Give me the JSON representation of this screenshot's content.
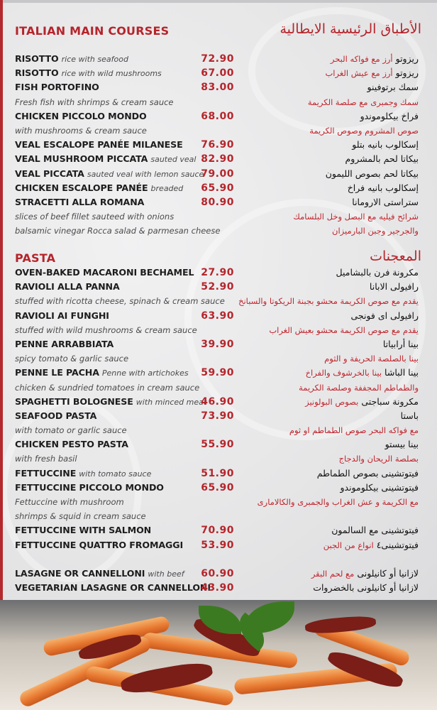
{
  "main_courses": {
    "title_en": "ITALIAN MAIN COURSES",
    "title_ar": "الأطباق الرئيسية الايطالية",
    "lines": [
      {
        "en": "RISOTTO",
        "en_i": "rice with seafood",
        "price": "72.90",
        "ar": "ريزوتو",
        "ar_r": "أرز مع فواكه البحر"
      },
      {
        "en": "RISOTTO",
        "en_i": "rice with wild mushrooms",
        "price": "67.00",
        "ar": "ريزوتو",
        "ar_r": "أرز مع عيش الغراب"
      },
      {
        "en": "FISH PORTOFINO",
        "price": "83.00",
        "ar": "سمك برتوفينو"
      },
      {
        "en_i": "Fresh fish with shrimps & cream sauce",
        "ar_r": "سمك وجمبرى مع صلصة الكريمة"
      },
      {
        "en": "CHICKEN PICCOLO MONDO",
        "price": "68.00",
        "ar": "فراخ بيكلوموندو"
      },
      {
        "en_i": "with mushrooms & cream sauce",
        "ar_r": "صوص المشروم وصوص الكريمة"
      },
      {
        "en": "VEAL ESCALOPE PANÉE MILANESE",
        "price": "76.90",
        "ar": "إسكالوب بانيه بتلو"
      },
      {
        "en": "VEAL MUSHROOM PICCATA",
        "en_i": "sauted veal",
        "price": "82.90",
        "ar": "بيكاتا لحم بالمشروم"
      },
      {
        "en": "VEAL PICCATA",
        "en_i": "sauted veal with lemon sauce",
        "price": "79.00",
        "ar": "بيكاتا لحم بصوص الليمون"
      },
      {
        "en": "CHICKEN ESCALOPE PANÉE",
        "en_i": "breaded",
        "price": "65.90",
        "ar": "إسكالوب بانيه فراخ"
      },
      {
        "en": "STRACETTI ALLA ROMANA",
        "price": "80.90",
        "ar": "ستراستى الارومانا"
      },
      {
        "en_i": "slices of beef fillet sauteed with onions",
        "ar_r": "شرائح فيليه مع البصل وخل البلسامك"
      },
      {
        "en_i": "balsamic vinegar Rocca salad & parmesan cheese",
        "ar_r": "والجرجير وجبن البارميزان"
      }
    ]
  },
  "pasta": {
    "title_en": "PASTA",
    "title_ar": "المعجنات",
    "lines": [
      {
        "en": "OVEN-BAKED MACARONI BECHAMEL",
        "price": "27.90",
        "ar": "مكرونة فرن بالبشاميل"
      },
      {
        "en": "RAVIOLI ALLA PANNA",
        "price": "52.90",
        "ar": "رافيولى الابانا"
      },
      {
        "en_i": "stuffed with ricotta cheese, spinach & cream sauce",
        "ar_r": "يقدم مع صوص الكريمة محشو بجبنة الريكوتا والسبانخ"
      },
      {
        "en": "RAVIOLI AI FUNGHI",
        "price": "63.90",
        "ar": "رافيولى اى فونجى"
      },
      {
        "en_i": "stuffed with wild mushrooms & cream sauce",
        "ar_r": "يقدم مع صوص الكريمة محشو بعيش الغراب"
      },
      {
        "en": "PENNE ARRABBIATA",
        "price": "39.90",
        "ar": "بينا أرابياتا"
      },
      {
        "en_i": "spicy tomato & garlic sauce",
        "ar_r": "بينا بالصلصة الحريفة و الثوم"
      },
      {
        "en": "PENNE LE PACHA",
        "en_i": "Penne with artichokes",
        "price": "59.90",
        "ar": "بينا الباشا",
        "ar_r": "بينا بالخرشوف والفراخ"
      },
      {
        "en_i": "chicken & sundried tomatoes in cream sauce",
        "ar_r": "والطماطم المجففة وصلصة الكريمة"
      },
      {
        "en": "SPAGHETTI BOLOGNESE",
        "en_i": "with minced meat",
        "price": "46.90",
        "ar": "مكرونة سباجتى",
        "ar_r": "بصوص البولونيز"
      },
      {
        "en": "SEAFOOD PASTA",
        "price": "73.90",
        "ar": "باستا"
      },
      {
        "en_i": "with tomato or garlic sauce",
        "ar_r": "مع فواكه البحر صوص الطماطم او ثوم"
      },
      {
        "en": "CHICKEN PESTO PASTA",
        "price": "55.90",
        "ar": "بينا بيستو"
      },
      {
        "en_i": "with fresh basil",
        "ar_r": "بصلصة الريحان والدجاج"
      },
      {
        "en": "FETTUCCINE",
        "en_i": "with tomato sauce",
        "price": "51.90",
        "ar": "فيتوتشينى بصوص الطماطم"
      },
      {
        "en": "FETTUCCINE PICCOLO MONDO",
        "price": "65.90",
        "ar": "فيتوتشينى بيكلوموندو"
      },
      {
        "en_i": "Fettuccine with mushroom",
        "ar_r": "مع الكريمة و عش الغراب والجمبرى والكالامارى"
      },
      {
        "en_i": " shrimps & squid in cream sauce"
      },
      {
        "en": "FETTUCCINE WITH SALMON",
        "price": "70.90",
        "ar": "فيتوتشينى مع السالمون"
      },
      {
        "en": "FETTUCCINE QUATTRO FROMAGGI",
        "price": "53.90",
        "ar": "فيتوتشينى٤",
        "ar_r": "انواع من الجبن"
      },
      {},
      {
        "en": "LASAGNE OR CANNELLONI",
        "en_i": "with beef",
        "price": "60.90",
        "ar": "لازانيا أو كانيلونى",
        "ar_r": "مع لحم البقر"
      },
      {
        "en": "VEGETARIAN LASAGNE OR CANNELLONI",
        "price": "43.90",
        "ar": "لازانيا أو كانيلونى بالخضروات"
      }
    ]
  },
  "colors": {
    "accent": "#b5252b",
    "text": "#1d1d1d",
    "background": "#e9e9ea"
  }
}
